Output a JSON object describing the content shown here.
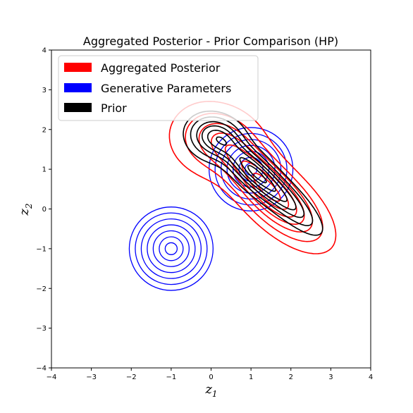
{
  "chart_data": {
    "type": "contour",
    "title": "Aggregated Posterior - Prior Comparison (HP)",
    "xlabel": "z",
    "xlabel_sub": "1",
    "ylabel": "z",
    "ylabel_sub": "2",
    "xlim": [
      -4,
      4
    ],
    "ylim": [
      -4,
      4
    ],
    "xticks": [
      -4,
      -3,
      -2,
      -1,
      0,
      1,
      2,
      3,
      4
    ],
    "yticks": [
      -4,
      -3,
      -2,
      -1,
      0,
      1,
      2,
      3,
      4
    ],
    "xtick_labels": [
      "−4",
      "−3",
      "−2",
      "−1",
      "0",
      "1",
      "2",
      "3",
      "4"
    ],
    "ytick_labels": [
      "−4",
      "−3",
      "−2",
      "−1",
      "0",
      "1",
      "2",
      "3",
      "4"
    ],
    "grid": false,
    "legend_position": "top-left",
    "series": [
      {
        "name": "Aggregated Posterior",
        "color": "#ff0000",
        "kind": "kde-contours",
        "center": [
          1.1,
          0.6
        ],
        "extent_x": [
          -1.7,
          3.4
        ],
        "extent_y": [
          -1.2,
          2.9
        ]
      },
      {
        "name": "Generative Parameters",
        "color": "#0000ff",
        "kind": "circular-gaussians",
        "components": [
          {
            "center": [
              -1,
              -1
            ],
            "radii": [
              0.15,
              0.3,
              0.45,
              0.6,
              0.75,
              0.9,
              1.05
            ]
          },
          {
            "center": [
              1,
              1
            ],
            "radii": [
              0.15,
              0.3,
              0.45,
              0.6,
              0.75,
              0.9,
              1.05
            ]
          }
        ]
      },
      {
        "name": "Prior",
        "color": "#000000",
        "kind": "kde-contours",
        "center": [
          0.9,
          0.9
        ],
        "extent_x": [
          -0.6,
          3.0
        ],
        "extent_y": [
          -0.6,
          2.6
        ]
      }
    ]
  }
}
